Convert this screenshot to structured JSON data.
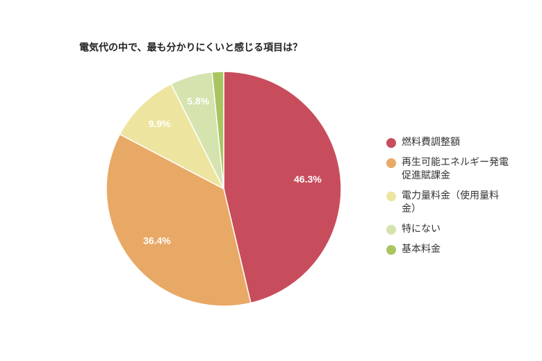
{
  "chart_data": {
    "type": "pie",
    "title": "電気代の中で、最も分かりにくいと感じる項目は？",
    "legend_position": "right",
    "slices": [
      {
        "label": "燃料費調整額",
        "value": 46.3,
        "data_label": "46.3%",
        "color": "#c84d5c"
      },
      {
        "label": "再生可能エネルギー発電促進賦課金",
        "value": 36.4,
        "data_label": "36.4%",
        "color": "#e8a966"
      },
      {
        "label": "電力量料金（使用量料金）",
        "value": 9.9,
        "data_label": "9.9%",
        "color": "#ede59f"
      },
      {
        "label": "特にない",
        "value": 5.8,
        "data_label": "5.8%",
        "color": "#d5e3ae"
      },
      {
        "label": "基本料金",
        "value": 1.6,
        "data_label": "",
        "color": "#a9c561"
      }
    ]
  }
}
